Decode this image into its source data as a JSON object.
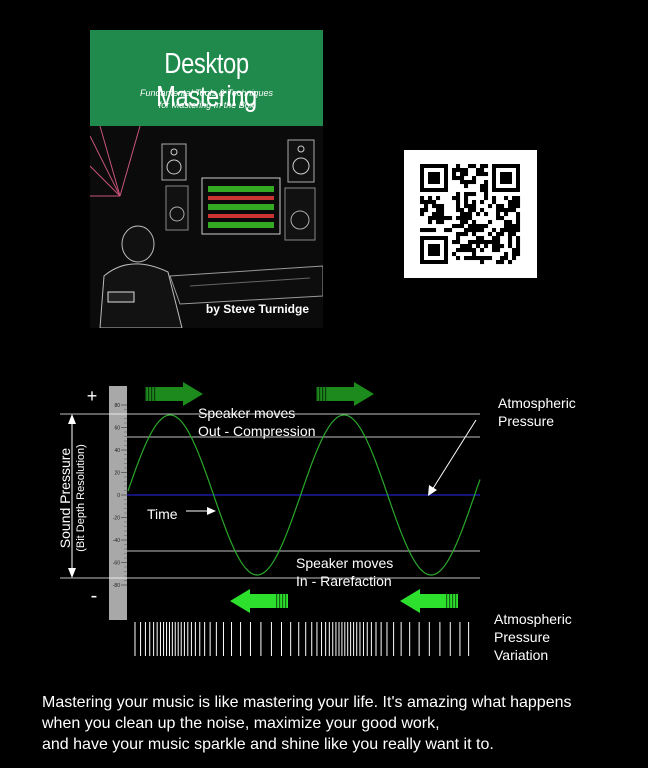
{
  "cover": {
    "title": "Desktop Mastering",
    "subtitle_line1": "Fundamental Tools & Techniques",
    "subtitle_line2": "for Mastering In the Box",
    "author": "by Steve Turnidge",
    "colors": {
      "band": "#1f8a4c"
    }
  },
  "qr": {
    "icon": "qr-code-icon"
  },
  "diagram": {
    "plus": "+",
    "minus": "-",
    "y_axis_label": "Sound Pressure",
    "y_axis_sublabel": "(Bit Depth Resolution)",
    "ruler_ticks": [
      "80",
      "60",
      "40",
      "20",
      "0",
      "-20",
      "-40",
      "-60",
      "-80"
    ],
    "compression_label_1": "Speaker moves",
    "compression_label_2": "Out - Compression",
    "rarefaction_label_1": "Speaker moves",
    "rarefaction_label_2": "In - Rarefaction",
    "time_label": "Time",
    "atmospheric_label_1": "Atmospheric",
    "atmospheric_label_2": "Pressure",
    "variation_label_1": "Atmospheric",
    "variation_label_2": "Pressure",
    "variation_label_3": "Variation",
    "colors": {
      "wave": "#2aa82a",
      "axis": "#1a1aa0",
      "arrow_dark": "#1c8a1c",
      "arrow_light": "#2ee02e"
    }
  },
  "caption": {
    "line1": "Mastering your music is like mastering your life. It's amazing what happens",
    "line2": "when you clean up the noise, maximize your good work,",
    "line3": "and have your music sparkle and shine like you really want it to."
  }
}
